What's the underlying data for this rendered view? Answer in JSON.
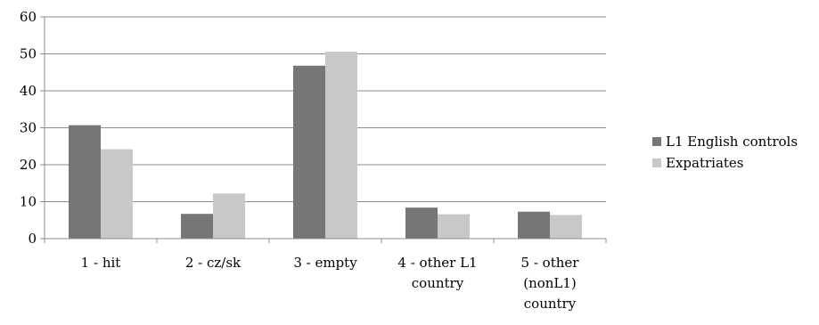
{
  "chart_data": {
    "type": "bar",
    "categories": [
      [
        "1 - hit"
      ],
      [
        "2 - cz/sk"
      ],
      [
        "3 - empty"
      ],
      [
        "4 - other L1",
        "country"
      ],
      [
        "5 - other",
        "(nonL1)",
        "country"
      ]
    ],
    "series": [
      {
        "name": "L1 English controls",
        "color": "#767676",
        "values": [
          30.7,
          6.7,
          46.8,
          8.4,
          7.3
        ]
      },
      {
        "name": "Expatriates",
        "color": "#c8c8c8",
        "values": [
          24.2,
          12.2,
          50.6,
          6.6,
          6.4
        ]
      }
    ],
    "ylim": [
      0,
      60
    ],
    "yticks": [
      0,
      10,
      20,
      30,
      40,
      50,
      60
    ],
    "grid": true,
    "legend_position": "right",
    "title": "",
    "xlabel": "",
    "ylabel": ""
  }
}
